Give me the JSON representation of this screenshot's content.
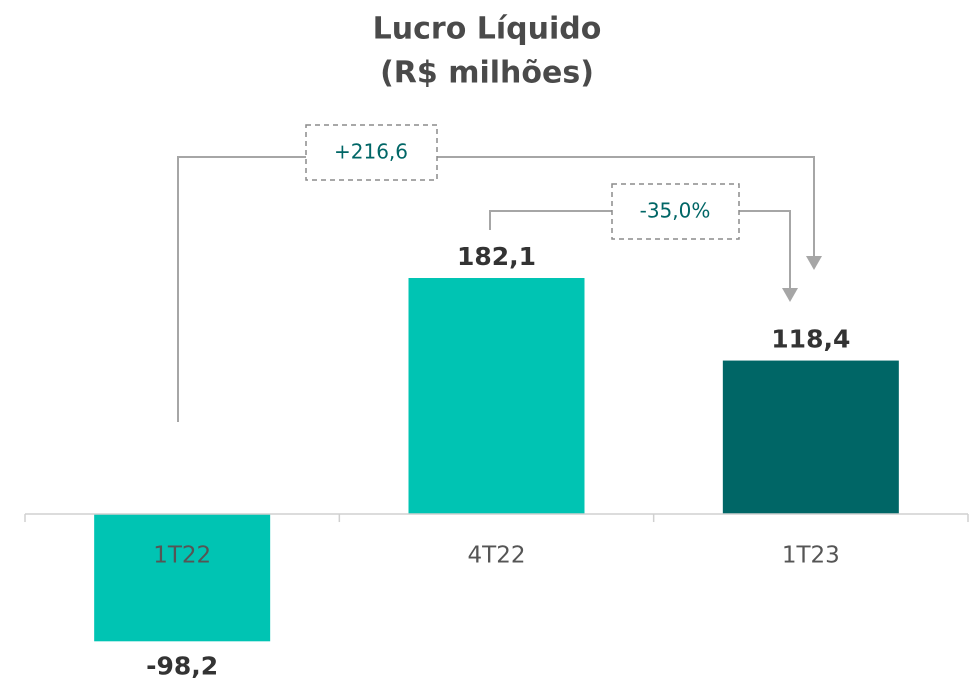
{
  "chart_data": {
    "type": "bar",
    "title": "Lucro Líquido",
    "subtitle": "(R$ milhões)",
    "categories": [
      "1T22",
      "4T22",
      "1T23"
    ],
    "values": [
      -98.2,
      182.1,
      118.4
    ],
    "value_labels": [
      "-98,2",
      "182,1",
      "118,4"
    ],
    "colors": [
      "#00c4b3",
      "#00c4b3",
      "#006666"
    ],
    "ylim": [
      -110,
      250
    ],
    "annotations": [
      "+216,6",
      "-35,0%"
    ]
  }
}
